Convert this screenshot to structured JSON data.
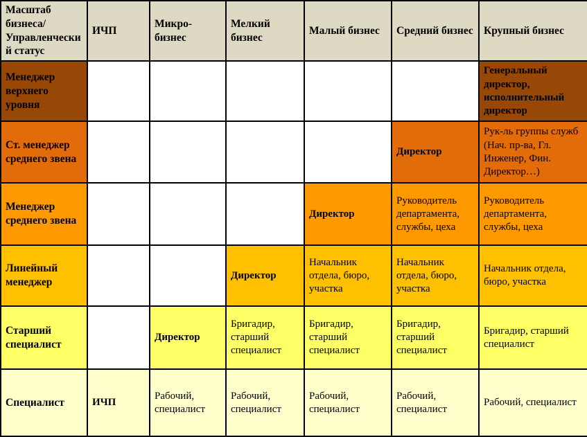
{
  "colors": {
    "header_bg": "#DDD9C3",
    "border": "#000000",
    "text": "#000000",
    "empty_cell_bg": "#FFFFFF",
    "level_colors": [
      "#974806",
      "#E36C0A",
      "#FF9900",
      "#FFC000",
      "#FFFF66",
      "#FFFFCC"
    ]
  },
  "table": {
    "columns": [
      {
        "label": "Масштаб бизнеса/ Управленческий статус"
      },
      {
        "label": "ИЧП"
      },
      {
        "label": "Микро-бизнес"
      },
      {
        "label": "Мелкий бизнес"
      },
      {
        "label": "Малый бизнес"
      },
      {
        "label": "Средний бизнес"
      },
      {
        "label": "Крупный бизнес"
      }
    ],
    "rows": [
      {
        "label": "Менеджер верхнего уровня",
        "color": "#974806",
        "cells": [
          null,
          null,
          null,
          null,
          null,
          {
            "text": "Генеральный директор, исполнительный директор",
            "bold": true
          }
        ]
      },
      {
        "label": "Ст. менеджер среднего звена",
        "color": "#E36C0A",
        "cells": [
          null,
          null,
          null,
          null,
          {
            "text": "Директор",
            "bold": true
          },
          {
            "text": "Рук-ль группы служб (Нач. пр-ва, Гл. Инженер, Фин. Директор…)",
            "justify": true
          }
        ]
      },
      {
        "label": "Менеджер среднего звена",
        "color": "#FF9900",
        "cells": [
          null,
          null,
          null,
          {
            "text": "Директор",
            "bold": true
          },
          {
            "text": "Руководитель департамента, службы, цеха"
          },
          {
            "text": "Руководитель департамента, службы, цеха"
          }
        ]
      },
      {
        "label": "Линейный менеджер",
        "color": "#FFC000",
        "cells": [
          null,
          null,
          {
            "text": "Директор",
            "bold": true
          },
          {
            "text": "Начальник отдела, бюро, участка",
            "justify": true
          },
          {
            "text": "Начальник отдела, бюро, участка",
            "justify": true
          },
          {
            "text": "Начальник отдела, бюро, участка"
          }
        ]
      },
      {
        "label": "Старший специалист",
        "color": "#FFFF66",
        "cells": [
          null,
          {
            "text": "Директор",
            "bold": true
          },
          {
            "text": "Бригадир, старший специалист"
          },
          {
            "text": "Бригадир, старший специалист"
          },
          {
            "text": "Бригадир, старший специалист"
          },
          {
            "text": "Бригадир, старший специалист"
          }
        ]
      },
      {
        "label": "Специалист",
        "color": "#FFFFCC",
        "cells": [
          {
            "text": "ИЧП",
            "bold": true,
            "center": true
          },
          {
            "text": "Рабочий, специалист"
          },
          {
            "text": "Рабочий, специалист"
          },
          {
            "text": "Рабочий, специалист"
          },
          {
            "text": "Рабочий, специалист"
          },
          {
            "text": "Рабочий, специалист"
          }
        ]
      }
    ]
  }
}
